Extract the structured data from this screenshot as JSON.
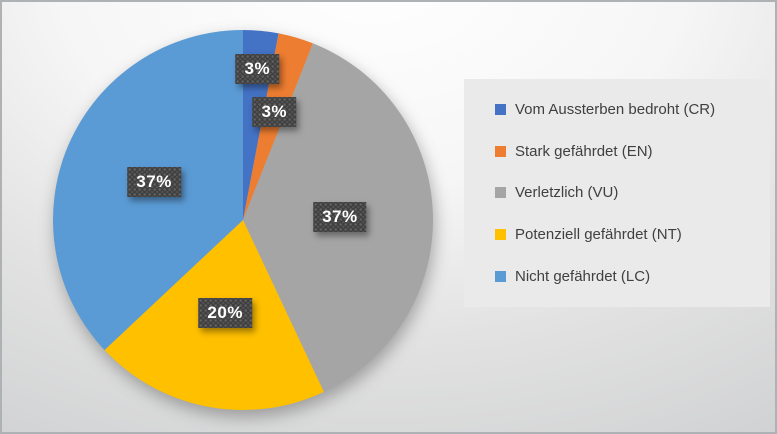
{
  "chart_data": {
    "type": "pie",
    "title": "",
    "categories": [
      "Vom Aussterben bedroht (CR)",
      "Stark gefährdet (EN)",
      "Verletzlich (VU)",
      "Potenziell gefährdet (NT)",
      "Nicht gefährdet (LC)"
    ],
    "values": [
      3,
      3,
      37,
      20,
      37
    ],
    "data_labels": [
      "3%",
      "3%",
      "37%",
      "20%",
      "37%"
    ],
    "colors": [
      "#4472C4",
      "#ED7D31",
      "#A5A5A5",
      "#FFC000",
      "#5B9BD5"
    ],
    "start_angle_deg": 0,
    "direction": "clockwise",
    "legend_position": "right",
    "label_radius_frac": [
      0.8,
      0.59,
      0.51,
      0.5,
      0.51
    ]
  },
  "ui": {
    "border_color": "#AEB2B4",
    "background_top": "#FFFFFF",
    "background_edge": "#C6C8C9",
    "legend_fill": "#EAEAEA",
    "legend_text_color": "#404040",
    "data_label_background": "#3E3E3E",
    "data_label_text_color": "#FFFFFF"
  }
}
